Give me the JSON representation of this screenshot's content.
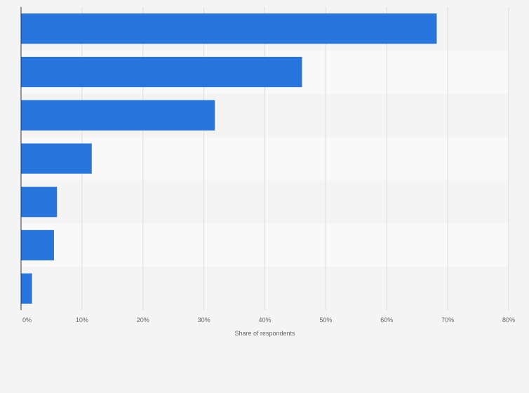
{
  "chart_data": {
    "type": "bar",
    "orientation": "horizontal",
    "categories": [
      "",
      "",
      "",
      "",
      "",
      "",
      ""
    ],
    "values": [
      68.2,
      46.1,
      31.8,
      11.6,
      5.9,
      5.4,
      1.8
    ],
    "xlabel": "Share of respondents",
    "ylabel": "",
    "xlim": [
      0,
      80
    ],
    "xticks": [
      "0%",
      "10%",
      "20%",
      "30%",
      "40%",
      "50%",
      "60%",
      "70%",
      "80%"
    ],
    "grid": "vertical",
    "bar_color": "#2776dd",
    "band_colors": [
      "#f4f4f4",
      "#f9f9f9"
    ]
  }
}
